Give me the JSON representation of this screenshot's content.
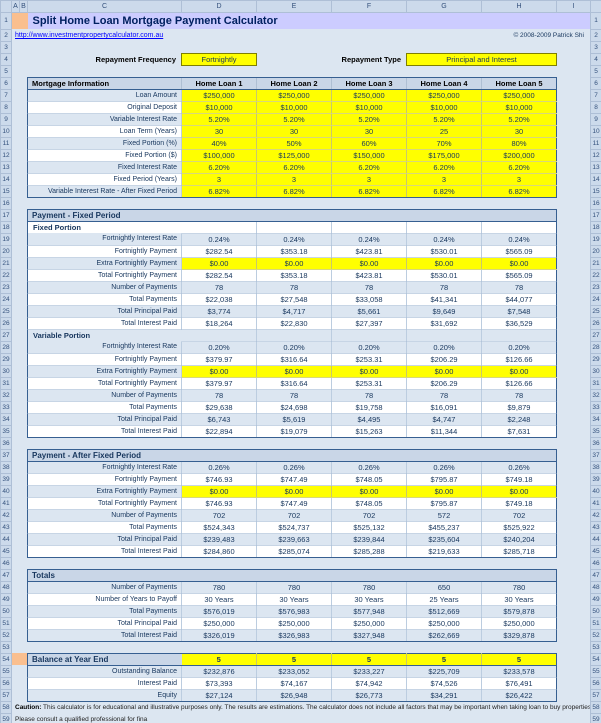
{
  "meta": {
    "title": "Split Home Loan Mortgage Payment Calculator",
    "url": "http://www.investmentpropertycalculator.com.au",
    "copyright": "© 2008-2009 Patrick Shi"
  },
  "controls": {
    "repayment_frequency_label": "Repayment Frequency",
    "repayment_frequency_value": "Fortnightly",
    "repayment_type_label": "Repayment Type",
    "repayment_type_value": "Principal and Interest"
  },
  "columns": [
    "A",
    "B",
    "C",
    "D",
    "E",
    "F",
    "G",
    "H",
    "I"
  ],
  "info_header": "Mortgage Information",
  "loan_headers": [
    "Home Loan 1",
    "Home Loan 2",
    "Home Loan 3",
    "Home Loan 4",
    "Home Loan 5"
  ],
  "colors": {
    "accent_yellow": "#ffff00",
    "title_band": "#ccccff",
    "orange_accent": "#fabf8f",
    "band_blue": "#dce6f1",
    "header_fill": "#c9d6e7",
    "section_border": "#365f91",
    "link_blue": "#0000ff"
  },
  "notes": [
    {
      "prefix": "Caution:",
      "text": " This calculator is for educational and illustrative purposes only. The results are estimations. The calculator does not include all factors that may be important when taking loan to buy properties."
    },
    {
      "prefix": "",
      "text": "Please consult a qualified professional for fina"
    }
  ],
  "rows": [
    {
      "n": 1,
      "t": "title"
    },
    {
      "n": 2,
      "t": "link"
    },
    {
      "n": 3,
      "t": "blank"
    },
    {
      "n": 4,
      "t": "controls"
    },
    {
      "n": 5,
      "t": "blank"
    },
    {
      "n": 6,
      "t": "loanhead"
    },
    {
      "n": 7,
      "t": "data",
      "label": "Loan Amount",
      "v": [
        "$250,000",
        "$250,000",
        "$250,000",
        "$250,000",
        "$250,000"
      ],
      "y": true
    },
    {
      "n": 8,
      "t": "data",
      "label": "Original Deposit",
      "v": [
        "$10,000",
        "$10,000",
        "$10,000",
        "$10,000",
        "$10,000"
      ],
      "y": true
    },
    {
      "n": 9,
      "t": "data",
      "label": "Variable Interest Rate",
      "v": [
        "5.20%",
        "5.20%",
        "5.20%",
        "5.20%",
        "5.20%"
      ],
      "y": true
    },
    {
      "n": 10,
      "t": "data",
      "label": "Loan Term (Years)",
      "v": [
        "30",
        "30",
        "30",
        "25",
        "30"
      ],
      "y": true
    },
    {
      "n": 11,
      "t": "data",
      "label": "Fixed Portion (%)",
      "v": [
        "40%",
        "50%",
        "60%",
        "70%",
        "80%"
      ],
      "y": true
    },
    {
      "n": 12,
      "t": "data",
      "label": "Fixed Portion ($)",
      "v": [
        "$100,000",
        "$125,000",
        "$150,000",
        "$175,000",
        "$200,000"
      ],
      "y": true
    },
    {
      "n": 13,
      "t": "data",
      "label": "Fixed Interest Rate",
      "v": [
        "6.20%",
        "6.20%",
        "6.20%",
        "6.20%",
        "6.20%"
      ],
      "y": true
    },
    {
      "n": 14,
      "t": "data",
      "label": "Fixed Period (Years)",
      "v": [
        "3",
        "3",
        "3",
        "3",
        "3"
      ],
      "y": true
    },
    {
      "n": 15,
      "t": "data",
      "label": "Variable Interest Rate - After Fixed Period",
      "v": [
        "6.82%",
        "6.82%",
        "6.82%",
        "6.82%",
        "6.82%"
      ],
      "y": true
    },
    {
      "n": 16,
      "t": "blank"
    },
    {
      "n": 17,
      "t": "section",
      "label": "Payment - Fixed Period"
    },
    {
      "n": 18,
      "t": "sub",
      "label": "Fixed Portion",
      "band": "w"
    },
    {
      "n": 19,
      "t": "data",
      "label": "Fortnightly Interest Rate",
      "v": [
        "0.24%",
        "0.24%",
        "0.24%",
        "0.24%",
        "0.24%"
      ]
    },
    {
      "n": 20,
      "t": "data",
      "label": "Fortnightly Payment",
      "v": [
        "$282.54",
        "$353.18",
        "$423.81",
        "$530.01",
        "$565.09"
      ]
    },
    {
      "n": 21,
      "t": "data",
      "label": "Extra Fortnightly Payment",
      "v": [
        "$0.00",
        "$0.00",
        "$0.00",
        "$0.00",
        "$0.00"
      ],
      "y": true
    },
    {
      "n": 22,
      "t": "data",
      "label": "Total Fortnightly Payment",
      "v": [
        "$282.54",
        "$353.18",
        "$423.81",
        "$530.01",
        "$565.09"
      ]
    },
    {
      "n": 23,
      "t": "data",
      "label": "Number of Payments",
      "v": [
        "78",
        "78",
        "78",
        "78",
        "78"
      ]
    },
    {
      "n": 24,
      "t": "data",
      "label": "Total Payments",
      "v": [
        "$22,038",
        "$27,548",
        "$33,058",
        "$41,341",
        "$44,077"
      ]
    },
    {
      "n": 25,
      "t": "data",
      "label": "Total Principal Paid",
      "v": [
        "$3,774",
        "$4,717",
        "$5,661",
        "$9,649",
        "$7,548"
      ]
    },
    {
      "n": 26,
      "t": "data",
      "label": "Total Interest Paid",
      "v": [
        "$18,264",
        "$22,830",
        "$27,397",
        "$31,692",
        "$36,529"
      ]
    },
    {
      "n": 27,
      "t": "sub",
      "label": "Variable Portion",
      "band": "b"
    },
    {
      "n": 28,
      "t": "data",
      "label": "Fortnightly Interest Rate",
      "v": [
        "0.20%",
        "0.20%",
        "0.20%",
        "0.20%",
        "0.20%"
      ]
    },
    {
      "n": 29,
      "t": "data",
      "label": "Fortnightly Payment",
      "v": [
        "$379.97",
        "$316.64",
        "$253.31",
        "$206.29",
        "$126.66"
      ]
    },
    {
      "n": 30,
      "t": "data",
      "label": "Extra Fortnightly Payment",
      "v": [
        "$0.00",
        "$0.00",
        "$0.00",
        "$0.00",
        "$0.00"
      ],
      "y": true
    },
    {
      "n": 31,
      "t": "data",
      "label": "Total Fortnightly Payment",
      "v": [
        "$379.97",
        "$316.64",
        "$253.31",
        "$206.29",
        "$126.66"
      ]
    },
    {
      "n": 32,
      "t": "data",
      "label": "Number of Payments",
      "v": [
        "78",
        "78",
        "78",
        "78",
        "78"
      ]
    },
    {
      "n": 33,
      "t": "data",
      "label": "Total Payments",
      "v": [
        "$29,638",
        "$24,698",
        "$19,758",
        "$16,091",
        "$9,879"
      ]
    },
    {
      "n": 34,
      "t": "data",
      "label": "Total Principal Paid",
      "v": [
        "$6,743",
        "$5,619",
        "$4,495",
        "$4,747",
        "$2,248"
      ]
    },
    {
      "n": 35,
      "t": "data",
      "label": "Total Interest Paid",
      "v": [
        "$22,894",
        "$19,079",
        "$15,263",
        "$11,344",
        "$7,631"
      ]
    },
    {
      "n": 36,
      "t": "blank"
    },
    {
      "n": 37,
      "t": "section",
      "label": "Payment - After Fixed Period"
    },
    {
      "n": 38,
      "t": "data",
      "label": "Fortnightly Interest Rate",
      "v": [
        "0.26%",
        "0.26%",
        "0.26%",
        "0.26%",
        "0.26%"
      ]
    },
    {
      "n": 39,
      "t": "data",
      "label": "Fortnightly Payment",
      "v": [
        "$746.93",
        "$747.49",
        "$748.05",
        "$795.87",
        "$749.18"
      ]
    },
    {
      "n": 40,
      "t": "data",
      "label": "Extra Fortnightly Payment",
      "v": [
        "$0.00",
        "$0.00",
        "$0.00",
        "$0.00",
        "$0.00"
      ],
      "y": true
    },
    {
      "n": 41,
      "t": "data",
      "label": "Total Fortnightly Payment",
      "v": [
        "$746.93",
        "$747.49",
        "$748.05",
        "$795.87",
        "$749.18"
      ]
    },
    {
      "n": 42,
      "t": "data",
      "label": "Number of Payments",
      "v": [
        "702",
        "702",
        "702",
        "572",
        "702"
      ]
    },
    {
      "n": 43,
      "t": "data",
      "label": "Total Payments",
      "v": [
        "$524,343",
        "$524,737",
        "$525,132",
        "$455,237",
        "$525,922"
      ]
    },
    {
      "n": 44,
      "t": "data",
      "label": "Total Principal Paid",
      "v": [
        "$239,483",
        "$239,663",
        "$239,844",
        "$235,604",
        "$240,204"
      ]
    },
    {
      "n": 45,
      "t": "data",
      "label": "Total Interest Paid",
      "v": [
        "$284,860",
        "$285,074",
        "$285,288",
        "$219,633",
        "$285,718"
      ]
    },
    {
      "n": 46,
      "t": "blank"
    },
    {
      "n": 47,
      "t": "section",
      "label": "Totals"
    },
    {
      "n": 48,
      "t": "data",
      "label": "Number of Payments",
      "v": [
        "780",
        "780",
        "780",
        "650",
        "780"
      ]
    },
    {
      "n": 49,
      "t": "data",
      "label": "Number of Years to Payoff",
      "v": [
        "30 Years",
        "30 Years",
        "30 Years",
        "25 Years",
        "30 Years"
      ]
    },
    {
      "n": 50,
      "t": "data",
      "label": "Total Payments",
      "v": [
        "$576,019",
        "$576,983",
        "$577,948",
        "$512,669",
        "$579,878"
      ]
    },
    {
      "n": 51,
      "t": "data",
      "label": "Total Principal Paid",
      "v": [
        "$250,000",
        "$250,000",
        "$250,000",
        "$250,000",
        "$250,000"
      ]
    },
    {
      "n": 52,
      "t": "data",
      "label": "Total Interest Paid",
      "v": [
        "$326,019",
        "$326,983",
        "$327,948",
        "$262,669",
        "$329,878"
      ]
    },
    {
      "n": 53,
      "t": "blank"
    },
    {
      "n": 54,
      "t": "balancehead",
      "label": "Balance at Year End",
      "v": [
        "5",
        "5",
        "5",
        "5",
        "5"
      ]
    },
    {
      "n": 55,
      "t": "data",
      "label": "Outstanding Balance",
      "v": [
        "$232,876",
        "$233,052",
        "$233,227",
        "$225,709",
        "$233,578"
      ]
    },
    {
      "n": 56,
      "t": "data",
      "label": "Interest Paid",
      "v": [
        "$73,393",
        "$74,167",
        "$74,942",
        "$74,526",
        "$76,491"
      ]
    },
    {
      "n": 57,
      "t": "data",
      "label": "Equity",
      "v": [
        "$27,124",
        "$26,948",
        "$26,773",
        "$34,291",
        "$26,422"
      ]
    },
    {
      "n": 58,
      "t": "note",
      "i": 0
    },
    {
      "n": 59,
      "t": "note",
      "i": 1
    }
  ]
}
